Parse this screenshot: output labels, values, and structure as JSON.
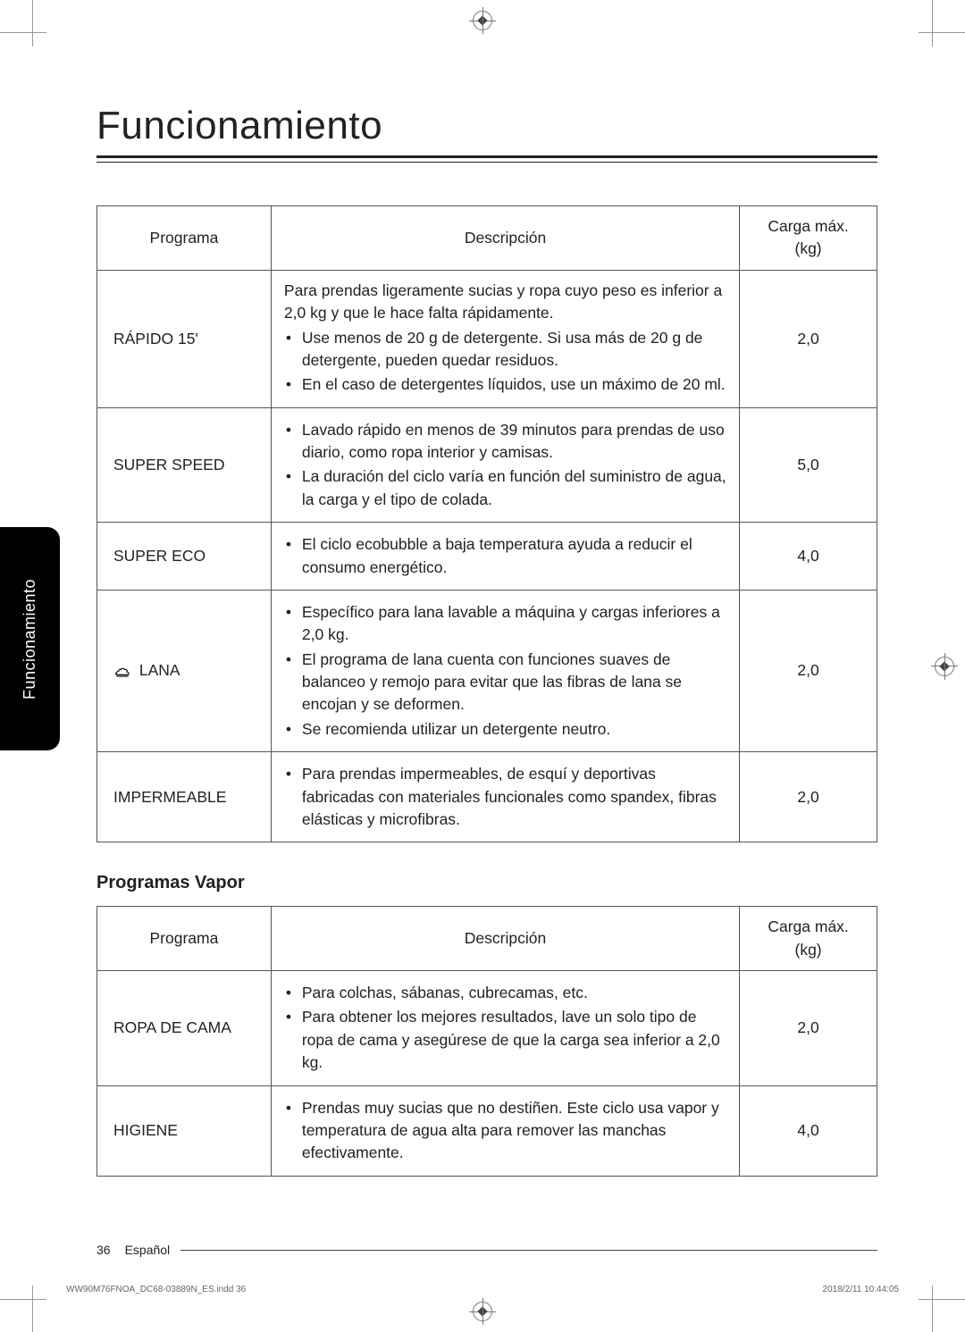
{
  "page": {
    "title": "Funcionamiento",
    "side_tab": "Funcionamiento",
    "page_number": "36",
    "language": "Español",
    "imprint_file": "WW90M76FNOA_DC68-03889N_ES.indd   36",
    "imprint_timestamp": "2018/2/11   10:44:05"
  },
  "colors": {
    "text": "#222222",
    "border": "#555555",
    "tab_bg": "#000000",
    "tab_text": "#ffffff",
    "page_bg": "#ffffff"
  },
  "table1": {
    "headers": {
      "programa": "Programa",
      "descripcion": "Descripción",
      "carga": "Carga máx. (kg)"
    },
    "col_widths": {
      "programa": 195,
      "descripcion": 525,
      "carga": 154
    },
    "rows": [
      {
        "program": "RÁPIDO 15'",
        "lead": "Para prendas ligeramente sucias y ropa cuyo peso es inferior a 2,0 kg y que le hace falta rápidamente.",
        "bullets": [
          "Use menos de 20 g de detergente. Si usa más de 20 g de detergente, pueden quedar residuos.",
          "En el caso de detergentes líquidos, use un máximo de 20 ml."
        ],
        "load": "2,0"
      },
      {
        "program": "SUPER SPEED",
        "bullets": [
          "Lavado rápido en menos de 39 minutos para prendas de uso diario, como ropa interior y camisas.",
          "La duración del ciclo varía en función del suministro de agua, la carga y el tipo de colada."
        ],
        "load": "5,0"
      },
      {
        "program": "SUPER ECO",
        "bullets": [
          "El ciclo ecobubble a baja temperatura ayuda a reducir el consumo energético."
        ],
        "load": "4,0"
      },
      {
        "program": "LANA",
        "has_icon": true,
        "bullets": [
          "Específico para lana lavable a máquina y cargas inferiores a 2,0 kg.",
          "El programa de lana cuenta con funciones suaves de balanceo y remojo para evitar que las fibras de lana se encojan y se deformen.",
          "Se recomienda utilizar un detergente neutro."
        ],
        "load": "2,0"
      },
      {
        "program": "IMPERMEABLE",
        "bullets": [
          "Para prendas impermeables, de esquí y deportivas fabricadas con materiales funcionales como spandex, fibras elásticas y microfibras."
        ],
        "load": "2,0"
      }
    ]
  },
  "section2_heading": "Programas Vapor",
  "table2": {
    "headers": {
      "programa": "Programa",
      "descripcion": "Descripción",
      "carga": "Carga máx. (kg)"
    },
    "rows": [
      {
        "program": "ROPA DE CAMA",
        "bullets": [
          "Para colchas, sábanas, cubrecamas, etc.",
          "Para obtener los mejores resultados, lave un solo tipo de ropa de cama y asegúrese de que la carga sea inferior a 2,0 kg."
        ],
        "load": "2,0"
      },
      {
        "program": "HIGIENE",
        "bullets": [
          "Prendas muy sucias que no destiñen. Este ciclo usa vapor y temperatura de agua alta para remover las manchas efectivamente."
        ],
        "load": "4,0"
      }
    ]
  }
}
